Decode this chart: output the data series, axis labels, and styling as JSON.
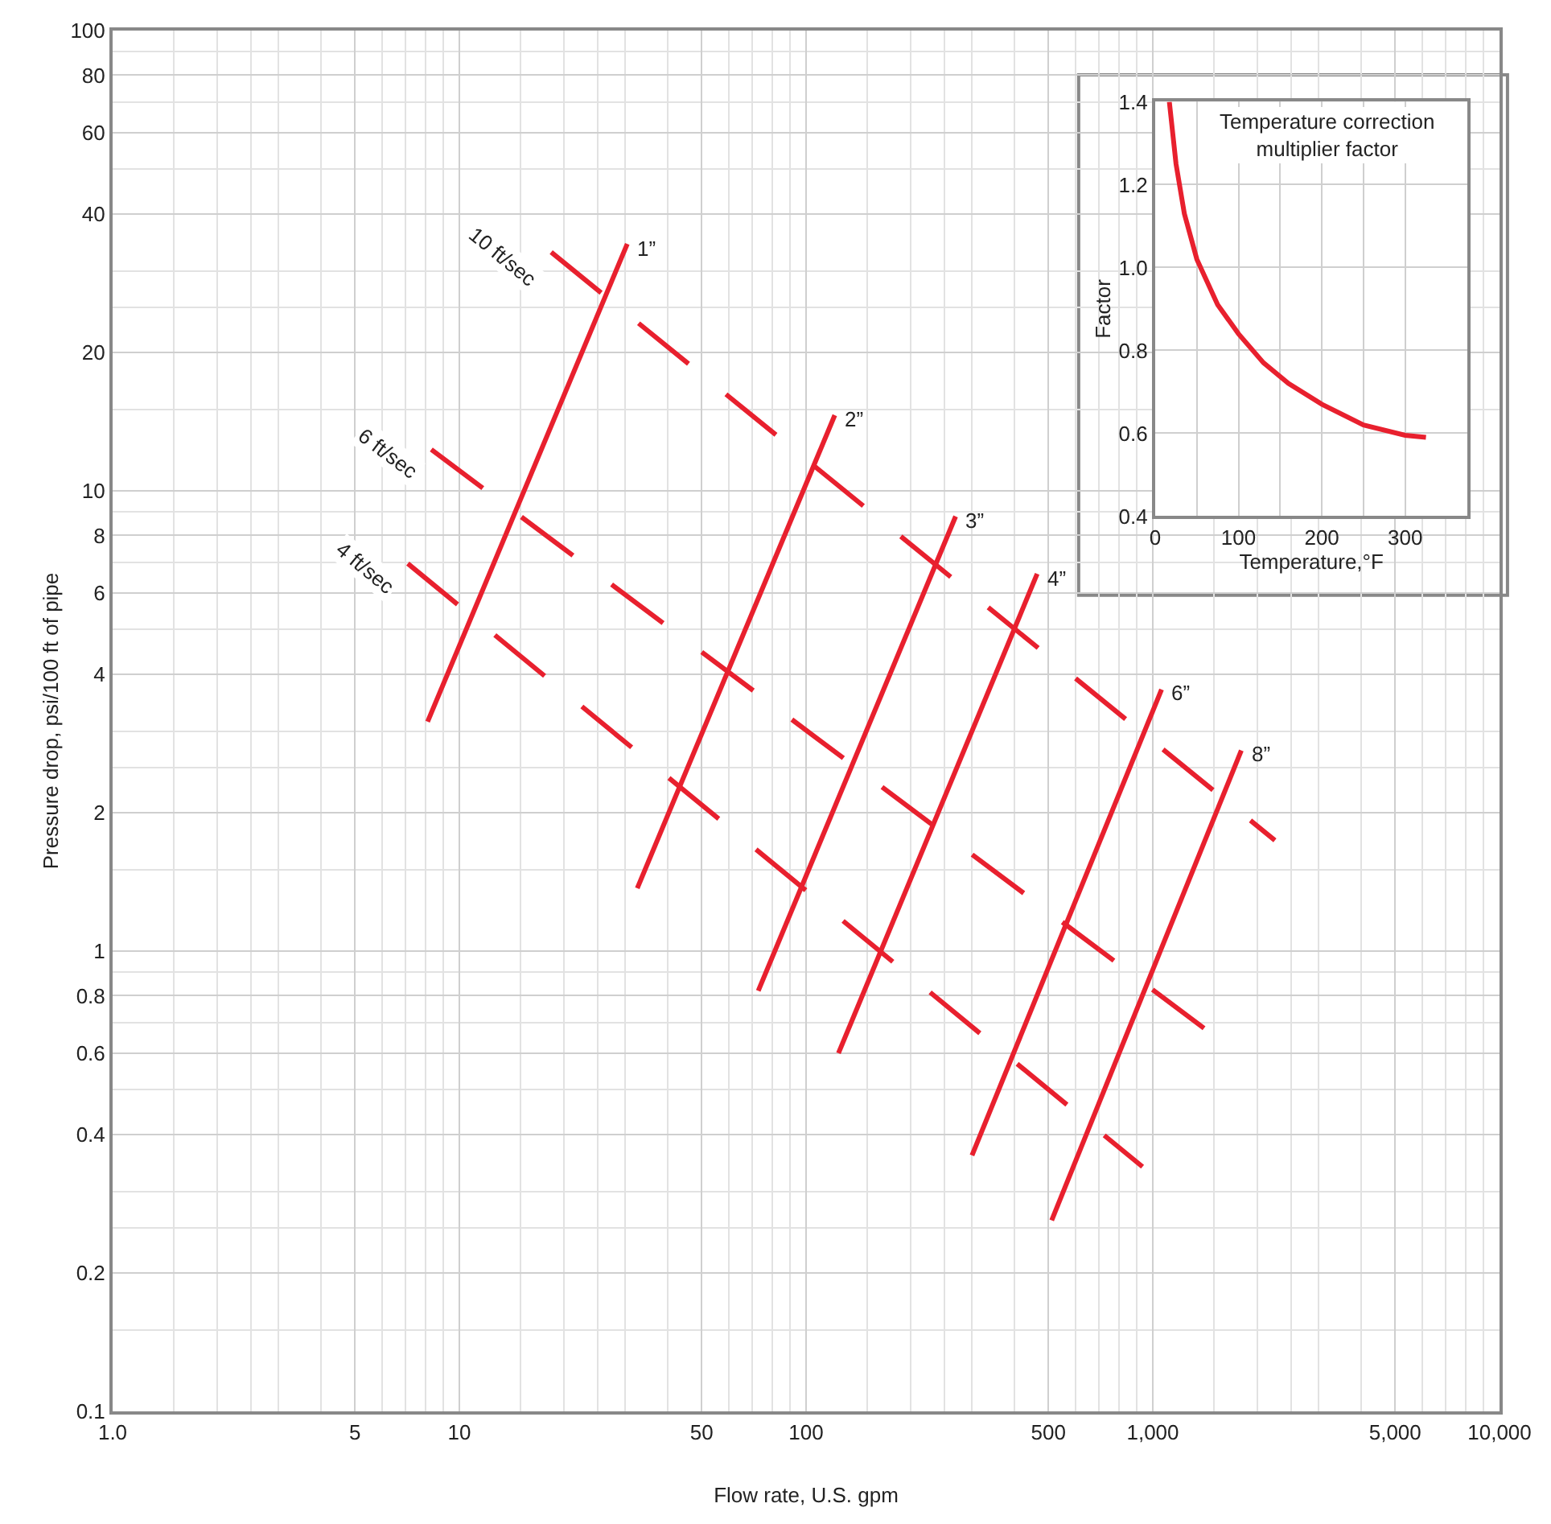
{
  "chart_data": [
    {
      "type": "line",
      "xlabel": "Flow rate, U.S. gpm",
      "ylabel": "Pressure drop, psi/100 ft of pipe",
      "log": "xy",
      "grid": true,
      "marker": "none",
      "xlim": [
        1,
        10000
      ],
      "ylim": [
        0.1,
        100
      ],
      "xticks": [
        {
          "value": 1,
          "label": "1.0"
        },
        5,
        10,
        50,
        100,
        500,
        {
          "value": 1000,
          "label": "1,000"
        },
        {
          "value": 5000,
          "label": "5,000"
        },
        {
          "value": 10000,
          "label": "10,000"
        }
      ],
      "yticks": [
        0.1,
        0.2,
        0.4,
        0.6,
        0.8,
        1,
        2,
        4,
        6,
        8,
        10,
        20,
        40,
        60,
        80,
        100
      ],
      "series": [
        {
          "name": "1”",
          "color": "#e8202e",
          "line_style": "solid",
          "x": [
            8.1,
            30.5
          ],
          "values": [
            3.15,
            34.4
          ]
        },
        {
          "name": "2”",
          "color": "#e8202e",
          "line_style": "solid",
          "x": [
            32.6,
            121
          ],
          "values": [
            1.37,
            14.6
          ]
        },
        {
          "name": "3”",
          "color": "#e8202e",
          "line_style": "solid",
          "x": [
            72.8,
            270
          ],
          "values": [
            0.82,
            8.8
          ]
        },
        {
          "name": "4”",
          "color": "#e8202e",
          "line_style": "solid",
          "x": [
            124,
            464
          ],
          "values": [
            0.6,
            6.6
          ]
        },
        {
          "name": "6”",
          "color": "#e8202e",
          "line_style": "solid",
          "x": [
            301,
            1060
          ],
          "values": [
            0.36,
            3.7
          ]
        },
        {
          "name": "8”",
          "color": "#e8202e",
          "line_style": "solid",
          "x": [
            511,
            1800
          ],
          "values": [
            0.26,
            2.73
          ]
        },
        {
          "name": "10 ft/sec",
          "color": "#e8202e",
          "line_style": "dashed",
          "x": [
            18.4,
            2250
          ],
          "values": [
            33,
            1.74
          ]
        },
        {
          "name": "6 ft/sec",
          "color": "#e8202e",
          "line_style": "dashed",
          "x": [
            8.3,
            1442
          ],
          "values": [
            12.3,
            0.67
          ]
        },
        {
          "name": "4 ft/sec",
          "color": "#e8202e",
          "line_style": "dashed",
          "x": [
            7.1,
            934
          ],
          "values": [
            6.95,
            0.34
          ]
        }
      ]
    },
    {
      "type": "line",
      "title": "Temperature correction\nmultiplier factor",
      "xlabel": "Temperature,°F",
      "ylabel": "Factor",
      "grid": true,
      "marker": "none",
      "xlim": [
        0,
        375
      ],
      "ylim": [
        0.4,
        1.4
      ],
      "xticks": [
        0,
        {
          "value": 50,
          "label": null
        },
        100,
        {
          "value": 150,
          "label": null
        },
        200,
        {
          "value": 250,
          "label": null
        },
        300
      ],
      "yticks": [
        0.4,
        0.6,
        0.8,
        {
          "value": 1,
          "label": "1.0"
        },
        1.2,
        1.4
      ],
      "series": [
        {
          "color": "#e8202e",
          "line_style": "solid",
          "x": [
            17,
            25,
            35,
            50,
            75,
            100,
            130,
            160,
            200,
            250,
            300,
            325
          ],
          "values": [
            1.4,
            1.25,
            1.13,
            1.02,
            0.91,
            0.84,
            0.77,
            0.72,
            0.67,
            0.62,
            0.595,
            0.59
          ]
        }
      ]
    }
  ]
}
